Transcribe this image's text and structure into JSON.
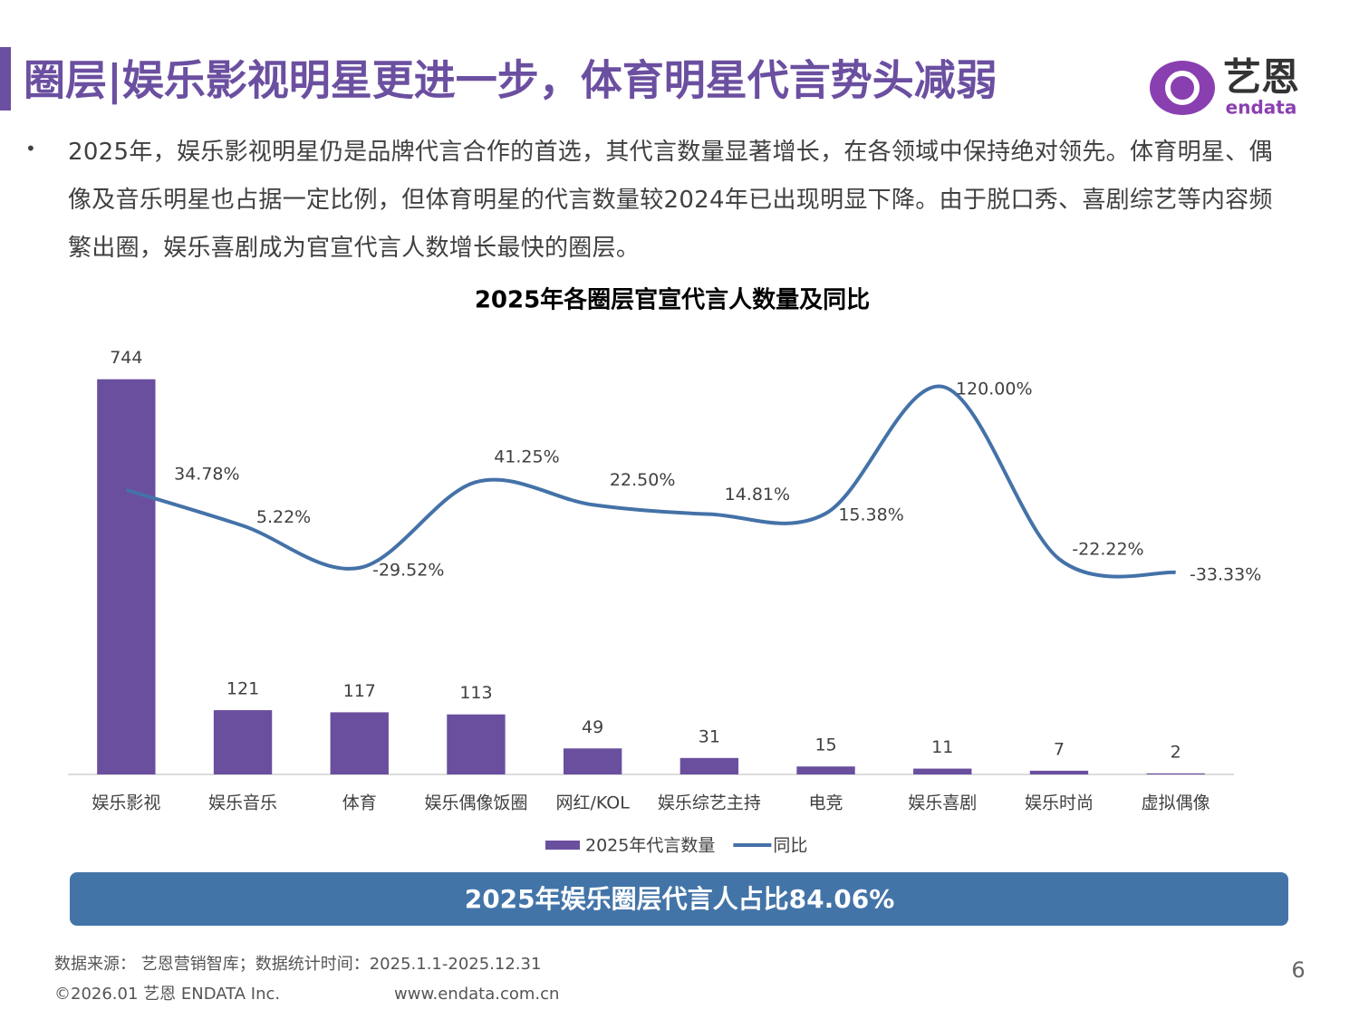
{
  "header": {
    "title": "圈层|娱乐影视明星更进一步，体育明星代言势头减弱",
    "logo_cn": "艺恩",
    "logo_en": "endata"
  },
  "bullet": "2025年，娱乐影视明星仍是品牌代言合作的首选，其代言数量显著增长，在各领域中保持绝对领先。体育明星、偶像及音乐明星也占据一定比例，但体育明星的代言数量较2024年已出现明显下降。由于脱口秀、喜剧综艺等内容频繁出圈，娱乐喜剧成为官宣代言人数增长最快的圈层。",
  "chart_data": {
    "type": "combo",
    "title": "2025年各圈层官宣代言人数量及同比",
    "categories": [
      "娱乐影视",
      "娱乐音乐",
      "体育",
      "娱乐偶像饭圈",
      "网红/KOL",
      "娱乐综艺主持",
      "电竞",
      "娱乐喜剧",
      "娱乐时尚",
      "虚拟偶像"
    ],
    "series": [
      {
        "name": "2025年代言数量",
        "type": "bar",
        "color": "#6a4f9f",
        "values": [
          744,
          121,
          117,
          113,
          49,
          31,
          15,
          11,
          7,
          2
        ]
      },
      {
        "name": "同比",
        "type": "line",
        "axis": "y2",
        "color": "#4472a8",
        "values": [
          34.78,
          5.22,
          -29.52,
          41.25,
          22.5,
          14.81,
          15.38,
          120,
          -22.22,
          -33.33
        ],
        "value_labels": [
          "34.78%",
          "5.22%",
          "-29.52%",
          "41.25%",
          "22.50%",
          "14.81%",
          "15.38%",
          "120.00%",
          "-22.22%",
          "-33.33%"
        ]
      }
    ],
    "ylim": [
      0,
      810
    ],
    "y2lim": [
      -200,
      155
    ],
    "legend": "bottom"
  },
  "banner": "2025年娱乐圈层代言人占比84.06%",
  "footer": {
    "source": "数据来源：  艺恩营销智库；数据统计时间：2025.1.1-2025.12.31",
    "copyright": "©2026.01 艺恩 ENDATA Inc.",
    "website": "www.endata.com.cn",
    "page": "6"
  }
}
